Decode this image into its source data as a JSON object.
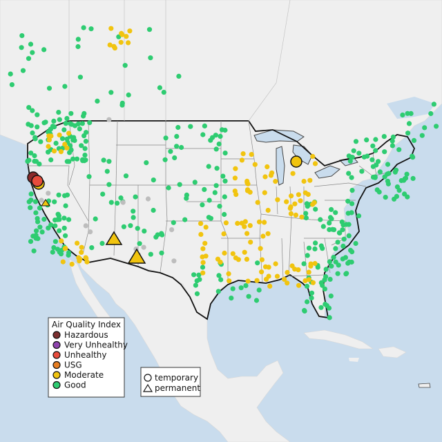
{
  "legend_aqi": {
    "title": "Air Quality Index",
    "items": [
      {
        "label": "Hazardous",
        "color": "#7b2f2f"
      },
      {
        "label": "Very Unhealthy",
        "color": "#8e44ad"
      },
      {
        "label": "Unhealthy",
        "color": "#e74c3c"
      },
      {
        "label": "USG",
        "color": "#e67e22"
      },
      {
        "label": "Moderate",
        "color": "#f1c40f"
      },
      {
        "label": "Good",
        "color": "#2ecc71"
      }
    ]
  },
  "legend_type": {
    "items": [
      {
        "label": "temporary",
        "shape": "circle"
      },
      {
        "label": "permanent",
        "shape": "triangle"
      }
    ]
  },
  "colors": {
    "water": "#c9dced",
    "land": "#efefef",
    "good": "#2ecc71",
    "moderate": "#f1c40f",
    "unhealthy": "#e74c3c",
    "no_data": "#bdbdbd"
  }
}
